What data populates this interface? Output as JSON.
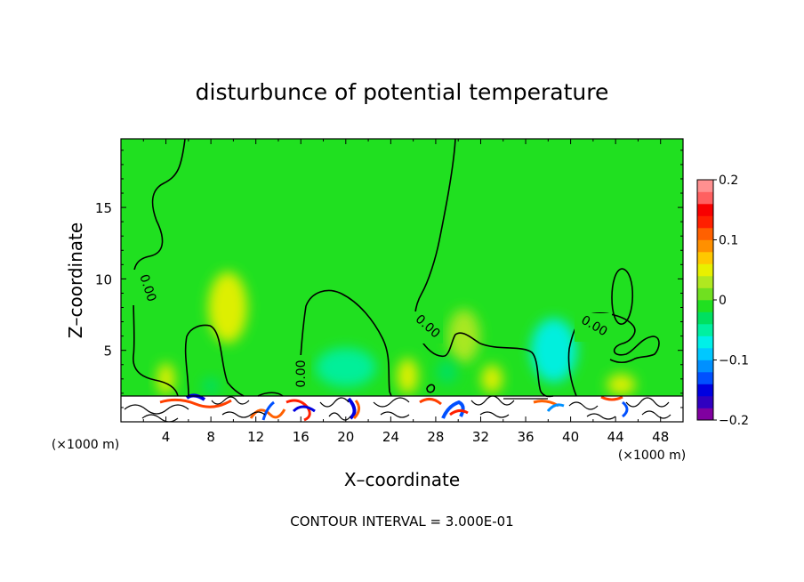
{
  "chart_data": {
    "type": "heatmap",
    "title": "disturbunce of potential temperature",
    "xlabel": "X–coordinate",
    "ylabel": "Z–coordinate",
    "x_unit": "(×1000 m)",
    "y_unit": "(×1000 m)",
    "xlim": [
      0,
      50
    ],
    "ylim": [
      0,
      19.8
    ],
    "x_ticks": [
      4,
      8,
      12,
      16,
      20,
      24,
      28,
      32,
      36,
      40,
      44,
      48
    ],
    "y_ticks": [
      5,
      10,
      15
    ],
    "contour_interval_text": "CONTOUR INTERVAL = 3.000E-01",
    "contour_label": "0.00",
    "colorbar": {
      "range": [
        -0.2,
        0.2
      ],
      "ticks": [
        "0.2",
        "0.1",
        "0",
        "−0.1",
        "−0.2"
      ],
      "tick_values": [
        0.2,
        0.1,
        0,
        -0.1,
        -0.2
      ],
      "colors": [
        "#8000a0",
        "#3000c0",
        "#0000e0",
        "#0050ff",
        "#0090ff",
        "#00c8ff",
        "#00f0e8",
        "#00f0a0",
        "#00e060",
        "#20e020",
        "#70e020",
        "#b0e820",
        "#e8f000",
        "#ffc800",
        "#ff9000",
        "#ff6000",
        "#ff2000",
        "#f80000",
        "#ff6060",
        "#ff9090"
      ]
    },
    "background_color": "#20e020",
    "warm_anomalies": [
      {
        "x": 9.5,
        "z": 8.0,
        "value": 0.04
      },
      {
        "x": 4.0,
        "z": 3.0,
        "value": 0.05
      },
      {
        "x": 25.5,
        "z": 3.2,
        "value": 0.05
      },
      {
        "x": 33.0,
        "z": 3.0,
        "value": 0.05
      },
      {
        "x": 44.5,
        "z": 2.6,
        "value": 0.05
      },
      {
        "x": 30.5,
        "z": 6.0,
        "value": 0.03
      }
    ],
    "cool_anomalies": [
      {
        "x": 20.0,
        "z": 3.8,
        "value": -0.06
      },
      {
        "x": 38.5,
        "z": 5.0,
        "value": -0.07
      },
      {
        "x": 8.0,
        "z": 2.5,
        "value": -0.03
      },
      {
        "x": 29.0,
        "z": 3.5,
        "value": -0.03
      }
    ],
    "surface_layer_top": 1.8
  }
}
